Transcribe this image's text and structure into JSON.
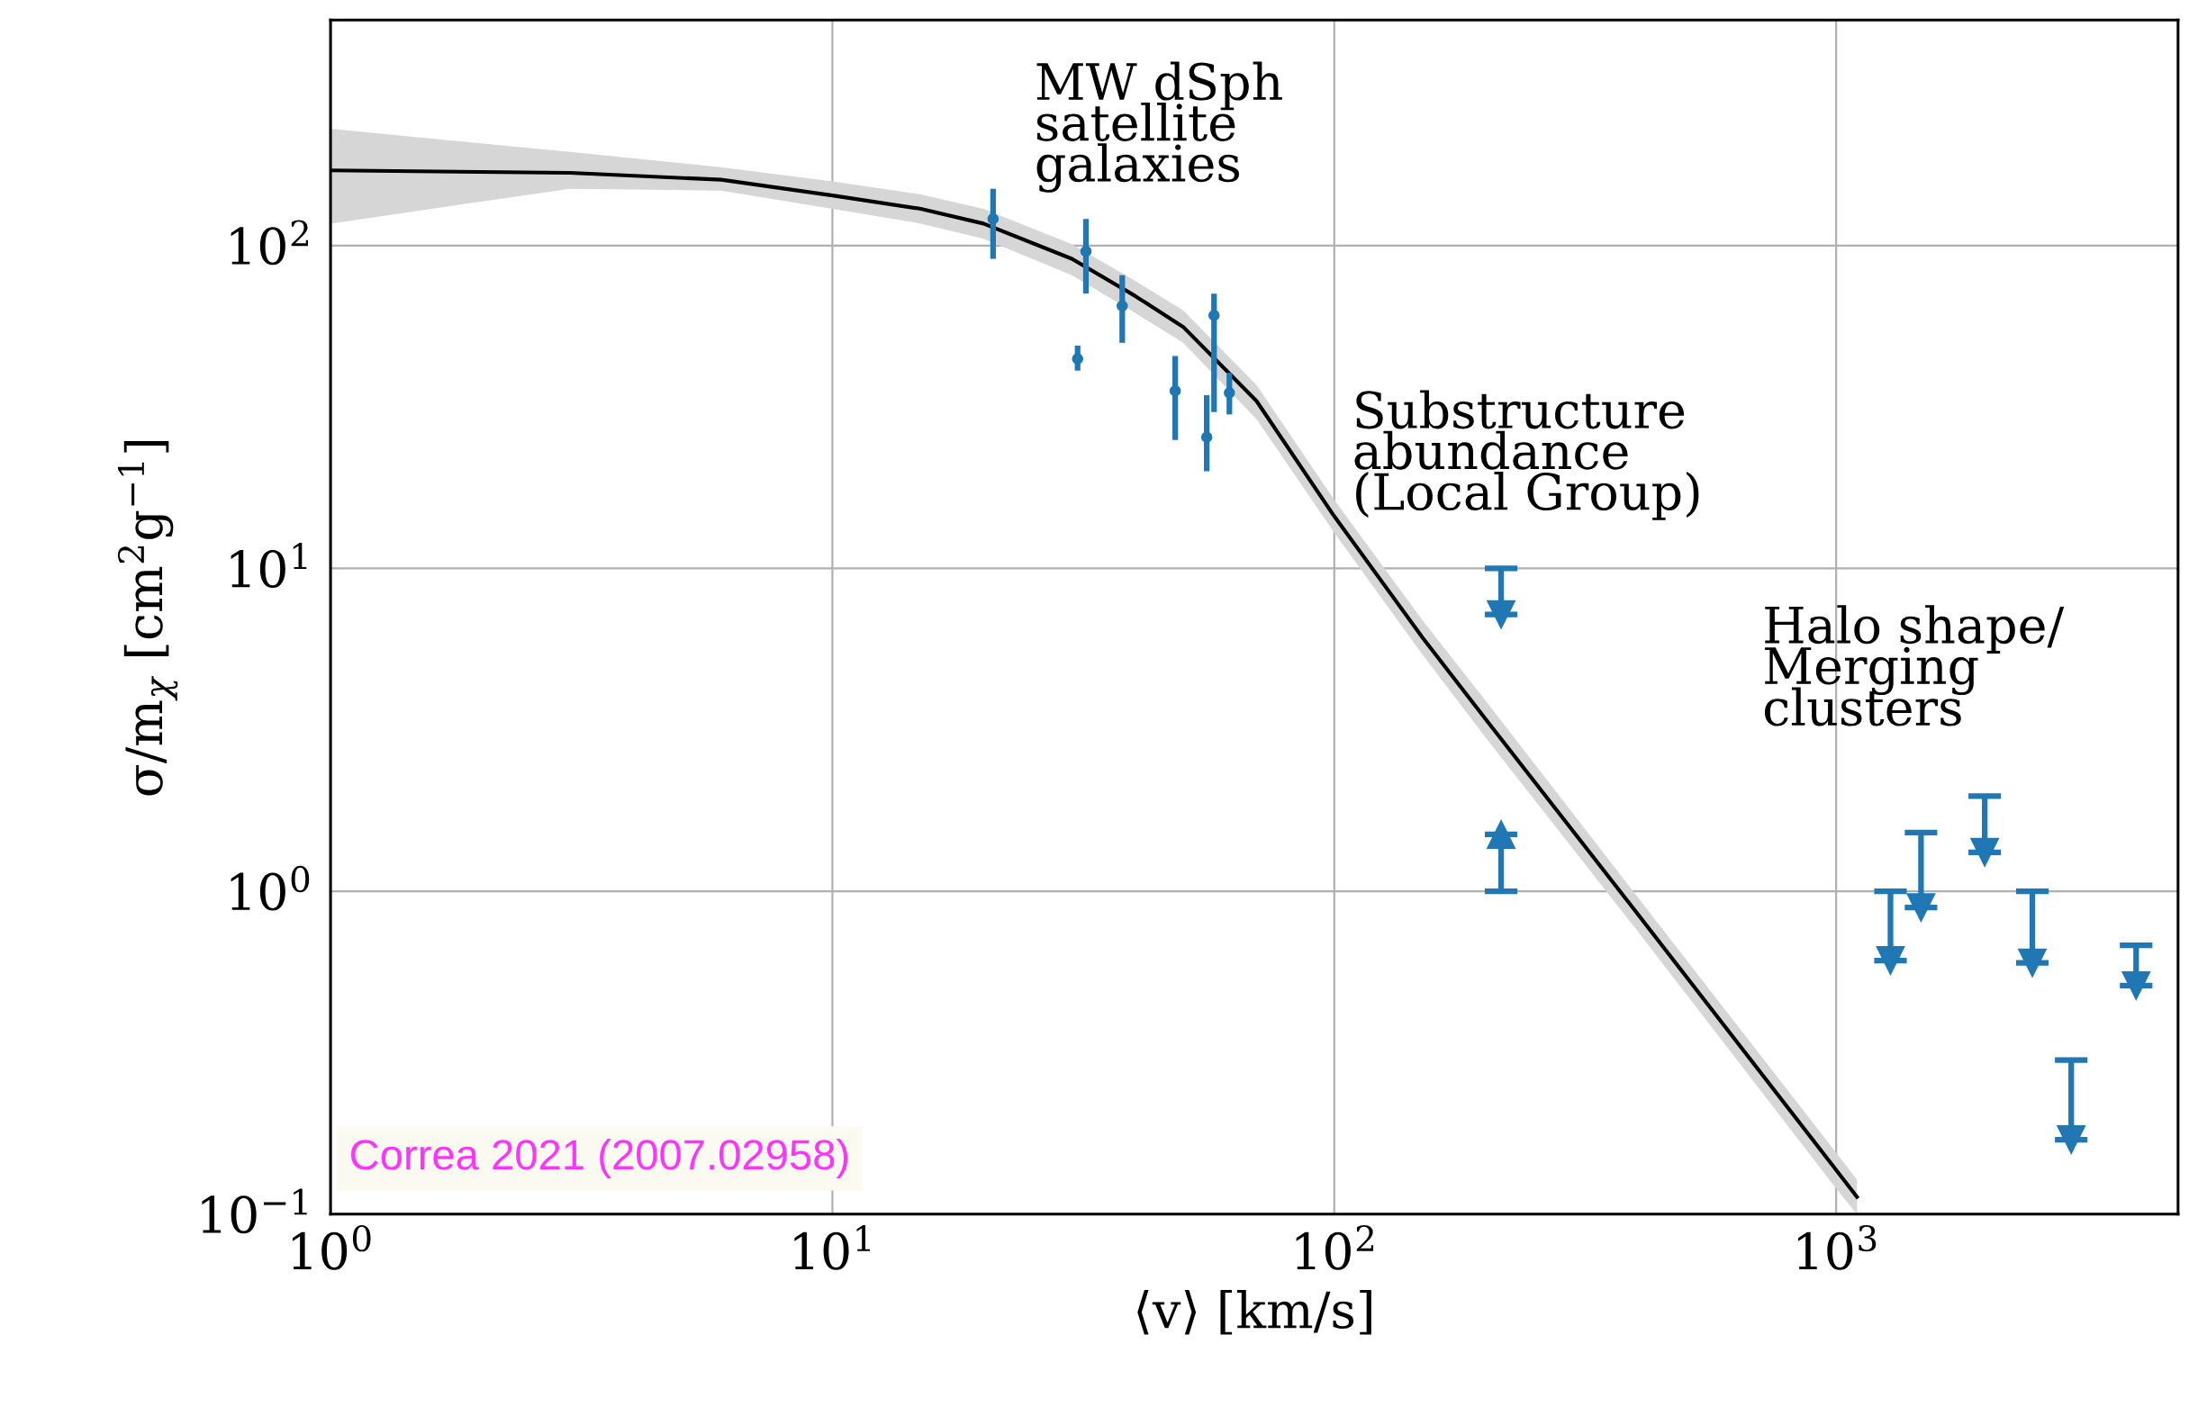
{
  "chart_data": {
    "type": "scatter",
    "xlabel": "⟨v⟩ [km/s]",
    "ylabel": "σ/m$_{χ}$ [cm$^{2}$g$^{−1}$]",
    "log": "xy",
    "grid": true,
    "xlim": [
      1,
      4800
    ],
    "ylim": [
      0.1,
      500
    ],
    "xticks": [
      {
        "value": 1,
        "label": "10$^{0}$"
      },
      {
        "value": 10,
        "label": "10$^{1}$"
      },
      {
        "value": 100,
        "label": "10$^{2}$"
      },
      {
        "value": 1000,
        "label": "10$^{3}$"
      }
    ],
    "yticks": [
      {
        "value": 0.1,
        "label": "10$^{−1}$"
      },
      {
        "value": 1,
        "label": "10$^{0}$"
      },
      {
        "value": 10,
        "label": "10$^{1}$"
      },
      {
        "value": 100,
        "label": "10$^{2}$"
      }
    ],
    "series": [
      {
        "type": "line",
        "color": "#000000",
        "x": [
          1,
          3,
          6,
          10,
          15,
          20,
          30,
          40,
          50,
          70,
          100,
          150,
          200,
          400,
          1000,
          1100
        ],
        "values": [
          171,
          168,
          160,
          143,
          130,
          117,
          91,
          70,
          56,
          33,
          14.5,
          6.1,
          3.42,
          0.86,
          0.137,
          0.113
        ],
        "lower": [
          117,
          150,
          148,
          130,
          117,
          105,
          81,
          62,
          50,
          29,
          12.9,
          5.4,
          3.0,
          0.76,
          0.12,
          0.1
        ],
        "upper": [
          230,
          195,
          175,
          158,
          144,
          130,
          101,
          78,
          63,
          37,
          16.3,
          6.9,
          3.9,
          0.97,
          0.155,
          0.128
        ]
      },
      {
        "color": "#1f77b4",
        "marker": "circle",
        "x": [
          20.9,
          30.8,
          32,
          37.8,
          48.2,
          55.7,
          57.6,
          61.8
        ],
        "values": [
          121,
          44.6,
          96,
          65,
          35.5,
          25.5,
          60.8,
          35
        ],
        "errors": [
          [
            91,
            150
          ],
          [
            41,
            49
          ],
          [
            71,
            121
          ],
          [
            50,
            81
          ],
          [
            25,
            45.5
          ],
          [
            20,
            34.4
          ],
          [
            30.5,
            71
          ],
          [
            30,
            40.4
          ]
        ]
      },
      {
        "color": "#1f77b4",
        "marker": "triangle",
        "x": [
          215,
          215,
          1283,
          1476,
          1977,
          2460,
          2940,
          3960
        ],
        "values": [
          7.2,
          1.5,
          0.61,
          0.89,
          1.32,
          0.6,
          0.17,
          0.51
        ],
        "errors": [
          [
            7.2,
            10
          ],
          [
            1,
            1.5
          ],
          [
            0.61,
            1
          ],
          [
            0.89,
            1.52
          ],
          [
            1.32,
            1.97
          ],
          [
            0.6,
            1
          ],
          [
            0.17,
            0.3
          ],
          [
            0.51,
            0.68
          ]
        ]
      }
    ],
    "annotations": [
      "MW dSph\nsatellite\ngalaxies",
      "Substructure\nabundance\n(Local Group)",
      "Halo shape/\nMerging\nclusters",
      "Correa 2021 (2007.02958)"
    ]
  }
}
